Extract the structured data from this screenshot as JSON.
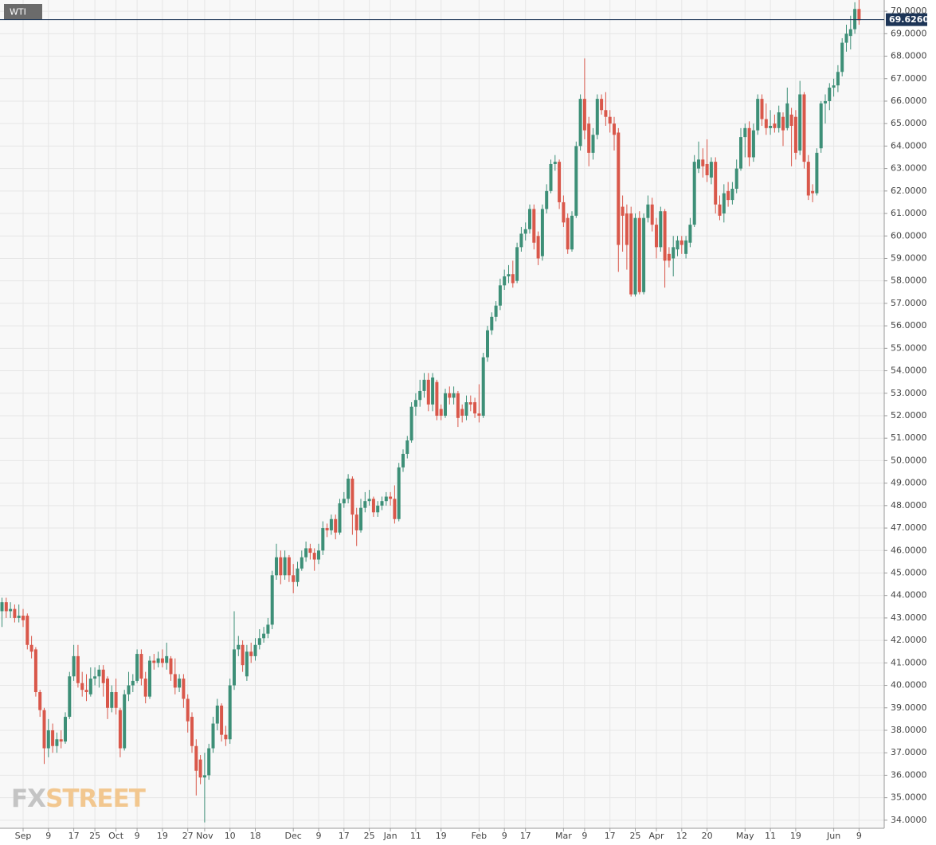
{
  "chart_data": {
    "type": "candlestick",
    "title": "WTI",
    "logo": {
      "fx": "FX",
      "street": "STREET"
    },
    "up_color": "#3d8f77",
    "down_color": "#d9574a",
    "grid": true,
    "ylim": [
      33.64,
      70.5
    ],
    "yticks": [
      {
        "value": 34,
        "label": "34.0000"
      },
      {
        "value": 35,
        "label": "35.0000"
      },
      {
        "value": 36,
        "label": "36.0000"
      },
      {
        "value": 37,
        "label": "37.0000"
      },
      {
        "value": 38,
        "label": "38.0000"
      },
      {
        "value": 39,
        "label": "39.0000"
      },
      {
        "value": 40,
        "label": "40.0000"
      },
      {
        "value": 41,
        "label": "41.0000"
      },
      {
        "value": 42,
        "label": "42.0000"
      },
      {
        "value": 43,
        "label": "43.0000"
      },
      {
        "value": 44,
        "label": "44.0000"
      },
      {
        "value": 45,
        "label": "45.0000"
      },
      {
        "value": 46,
        "label": "46.0000"
      },
      {
        "value": 47,
        "label": "47.0000"
      },
      {
        "value": 48,
        "label": "48.0000"
      },
      {
        "value": 49,
        "label": "49.0000"
      },
      {
        "value": 50,
        "label": "50.0000"
      },
      {
        "value": 51,
        "label": "51.0000"
      },
      {
        "value": 52,
        "label": "52.0000"
      },
      {
        "value": 53,
        "label": "53.0000"
      },
      {
        "value": 54,
        "label": "54.0000"
      },
      {
        "value": 55,
        "label": "55.0000"
      },
      {
        "value": 56,
        "label": "56.0000"
      },
      {
        "value": 57,
        "label": "57.0000"
      },
      {
        "value": 58,
        "label": "58.0000"
      },
      {
        "value": 59,
        "label": "59.0000"
      },
      {
        "value": 60,
        "label": "60.0000"
      },
      {
        "value": 61,
        "label": "61.0000"
      },
      {
        "value": 62,
        "label": "62.0000"
      },
      {
        "value": 63,
        "label": "63.0000"
      },
      {
        "value": 64,
        "label": "64.0000"
      },
      {
        "value": 65,
        "label": "65.0000"
      },
      {
        "value": 66,
        "label": "66.0000"
      },
      {
        "value": 67,
        "label": "67.0000"
      },
      {
        "value": 68,
        "label": "68.0000"
      },
      {
        "value": 69,
        "label": "69.0000"
      },
      {
        "value": 70,
        "label": "70.0000"
      }
    ],
    "last_price": {
      "value": 69.626,
      "label": "69.6260"
    },
    "categories": [
      null,
      null,
      null,
      null,
      null,
      "Sep",
      null,
      null,
      null,
      null,
      null,
      "9",
      null,
      null,
      null,
      null,
      null,
      "17",
      null,
      null,
      null,
      null,
      "25",
      null,
      null,
      null,
      null,
      "Oct",
      null,
      null,
      null,
      null,
      "9",
      null,
      null,
      null,
      null,
      null,
      "19",
      null,
      null,
      null,
      null,
      null,
      "27",
      null,
      null,
      null,
      "Nov",
      null,
      null,
      null,
      null,
      null,
      "10",
      null,
      null,
      null,
      null,
      null,
      "18",
      null,
      null,
      null,
      null,
      null,
      null,
      null,
      null,
      "Dec",
      null,
      null,
      null,
      null,
      null,
      "9",
      null,
      null,
      null,
      null,
      null,
      "17",
      null,
      null,
      null,
      null,
      null,
      "25",
      null,
      null,
      null,
      null,
      "Jan",
      null,
      null,
      null,
      null,
      null,
      "11",
      null,
      null,
      null,
      null,
      null,
      "19",
      null,
      null,
      null,
      null,
      null,
      null,
      null,
      null,
      "Feb",
      null,
      null,
      null,
      null,
      null,
      "9",
      null,
      null,
      null,
      null,
      "17",
      null,
      null,
      null,
      null,
      null,
      null,
      null,
      null,
      "Mar",
      null,
      null,
      null,
      null,
      "9",
      null,
      null,
      null,
      null,
      null,
      "17",
      null,
      null,
      null,
      null,
      null,
      "25",
      null,
      null,
      null,
      null,
      "Apr",
      null,
      null,
      null,
      null,
      null,
      "12",
      null,
      null,
      null,
      null,
      null,
      "20",
      null,
      null,
      null,
      null,
      null,
      null,
      null,
      null,
      "May",
      null,
      null,
      null,
      null,
      null,
      "11",
      null,
      null,
      null,
      null,
      null,
      "19",
      null,
      null,
      null,
      null,
      null,
      null,
      null,
      null,
      "Jun",
      null,
      null,
      null,
      null,
      null,
      "9"
    ],
    "open": [
      43.3,
      43.7,
      43.3,
      43.4,
      43.0,
      43.1,
      43.1,
      41.8,
      41.6,
      39.7,
      38.9,
      37.2,
      38.0,
      37.3,
      37.6,
      37.5,
      38.6,
      40.4,
      41.3,
      40.1,
      39.8,
      39.6,
      40.3,
      40.4,
      40.7,
      40.3,
      39.0,
      39.7,
      38.9,
      37.2,
      39.6,
      40.0,
      40.2,
      41.4,
      40.3,
      39.5,
      41.1,
      41.0,
      41.2,
      41.0,
      41.2,
      40.5,
      39.9,
      40.3,
      39.4,
      38.6,
      37.3,
      36.7,
      35.9,
      36.0,
      37.2,
      38.3,
      39.1,
      37.8,
      37.6,
      40.0,
      41.6,
      41.8,
      40.4,
      41.5,
      41.3,
      41.8,
      42.1,
      42.3,
      42.7,
      44.9,
      45.7,
      44.9,
      45.7,
      44.9,
      44.6,
      45.2,
      45.7,
      46.1,
      45.9,
      45.6,
      46.0,
      47.0,
      46.9,
      47.4,
      46.8,
      48.1,
      48.3,
      49.2,
      47.6,
      46.9,
      47.9,
      48.2,
      48.3,
      47.7,
      48.0,
      48.2,
      48.4,
      48.3,
      47.4,
      49.7,
      50.3,
      50.9,
      52.4,
      52.7,
      53.1,
      53.6,
      52.5,
      53.5,
      52.3,
      52.0,
      53.0,
      52.8,
      53.0,
      52.3,
      52.0,
      52.6,
      52.6,
      52.1,
      52.0,
      54.6,
      55.8,
      56.4,
      56.9,
      57.8,
      58.2,
      58.3,
      58.0,
      59.5,
      60.1,
      60.3,
      61.2,
      60.0,
      59.1,
      61.2,
      62.0,
      63.2,
      63.3,
      61.5,
      60.8,
      59.4,
      60.9,
      64.0,
      66.1,
      65.0,
      63.7,
      64.5,
      66.1,
      65.6,
      65.3,
      65.0,
      64.6,
      61.3,
      61.0,
      61.0,
      57.4,
      60.8,
      57.5,
      60.8,
      61.4,
      60.5,
      59.5,
      61.1,
      59.2,
      59.0,
      59.4,
      59.8,
      59.2,
      59.7,
      60.5,
      63.0,
      63.4,
      63.2,
      62.6,
      63.3,
      61.4,
      61.0,
      62.0,
      61.6,
      62.1,
      63.0,
      64.4,
      64.8,
      63.5,
      64.7,
      66.1,
      65.2,
      64.8,
      65.0,
      64.8,
      65.3,
      64.8,
      65.4,
      65.3,
      63.8,
      66.3,
      63.3,
      62.0,
      61.9,
      63.9,
      65.9,
      66.0,
      66.6,
      66.7,
      67.3,
      68.6,
      68.9,
      69.2,
      70.1
    ],
    "high": [
      43.9,
      43.9,
      43.7,
      43.6,
      43.6,
      43.4,
      43.2,
      42.2,
      41.7,
      39.8,
      39.0,
      38.5,
      38.3,
      37.9,
      38.0,
      38.8,
      40.6,
      41.8,
      41.8,
      40.6,
      40.5,
      40.8,
      40.8,
      40.9,
      40.9,
      40.4,
      40.0,
      40.3,
      39.0,
      39.8,
      40.6,
      40.5,
      41.6,
      41.6,
      40.6,
      41.3,
      41.4,
      41.5,
      41.6,
      41.9,
      41.3,
      41.2,
      40.5,
      40.5,
      39.6,
      38.8,
      37.6,
      36.9,
      37.0,
      37.4,
      38.6,
      39.4,
      39.2,
      38.2,
      40.3,
      43.3,
      42.2,
      42.0,
      41.8,
      41.9,
      42.1,
      42.5,
      42.6,
      43.0,
      45.1,
      46.3,
      46.0,
      46.0,
      45.8,
      45.4,
      45.5,
      46.0,
      46.4,
      46.3,
      46.1,
      46.3,
      47.3,
      47.2,
      47.6,
      47.6,
      48.3,
      48.6,
      49.4,
      49.3,
      47.9,
      48.3,
      48.6,
      48.7,
      48.4,
      48.2,
      48.4,
      48.6,
      48.6,
      48.9,
      49.9,
      50.5,
      51.1,
      52.6,
      53.0,
      53.6,
      53.9,
      53.9,
      53.9,
      53.6,
      52.5,
      53.2,
      53.3,
      53.3,
      53.1,
      52.5,
      52.9,
      52.9,
      52.8,
      53.4,
      54.8,
      56.0,
      56.6,
      57.1,
      58.1,
      58.5,
      58.7,
      58.9,
      59.7,
      60.4,
      60.6,
      61.4,
      61.4,
      60.2,
      61.4,
      62.3,
      63.4,
      63.6,
      63.4,
      61.8,
      61.0,
      61.1,
      64.2,
      66.3,
      67.9,
      65.3,
      64.8,
      66.3,
      66.3,
      66.4,
      65.6,
      65.3,
      64.8,
      61.8,
      61.4,
      61.3,
      61.0,
      61.1,
      61.0,
      61.8,
      61.7,
      60.8,
      61.3,
      61.2,
      59.5,
      60.0,
      60.0,
      60.0,
      60.0,
      60.8,
      63.6,
      64.2,
      63.9,
      64.3,
      63.5,
      63.5,
      61.8,
      62.3,
      62.4,
      62.4,
      63.4,
      64.8,
      65.0,
      65.1,
      65.0,
      66.3,
      66.3,
      65.9,
      65.6,
      65.4,
      65.8,
      65.5,
      66.6,
      65.7,
      65.6,
      66.9,
      66.4,
      63.6,
      62.3,
      63.9,
      66.0,
      66.3,
      66.8,
      67.0,
      67.6,
      68.8,
      69.4,
      69.8,
      70.4,
      70.5
    ],
    "low": [
      42.6,
      43.0,
      43.0,
      42.8,
      42.8,
      42.6,
      41.6,
      41.2,
      39.5,
      38.6,
      36.5,
      36.8,
      37.0,
      37.0,
      37.2,
      37.4,
      38.5,
      40.2,
      39.9,
      39.5,
      39.3,
      39.5,
      40.0,
      39.9,
      39.5,
      38.5,
      38.8,
      38.7,
      36.8,
      37.1,
      39.3,
      39.7,
      40.1,
      40.0,
      39.2,
      39.4,
      40.7,
      40.8,
      40.8,
      40.7,
      40.2,
      39.6,
      39.7,
      39.0,
      37.9,
      37.0,
      35.1,
      35.6,
      33.9,
      35.8,
      37.0,
      38.0,
      37.5,
      37.3,
      37.4,
      39.8,
      41.3,
      40.6,
      40.2,
      41.0,
      41.1,
      41.6,
      41.9,
      42.1,
      42.5,
      44.7,
      44.5,
      44.7,
      44.6,
      44.1,
      44.4,
      45.1,
      45.5,
      45.6,
      45.1,
      45.4,
      45.8,
      46.6,
      46.7,
      46.5,
      46.7,
      47.9,
      48.1,
      46.7,
      46.2,
      46.8,
      47.7,
      48.0,
      47.5,
      47.5,
      47.8,
      48.0,
      48.0,
      47.2,
      47.3,
      49.5,
      50.1,
      50.8,
      52.0,
      52.4,
      52.8,
      52.2,
      52.2,
      51.8,
      51.8,
      51.9,
      52.5,
      52.5,
      51.5,
      51.7,
      51.8,
      52.2,
      51.9,
      51.7,
      51.9,
      54.4,
      55.6,
      56.2,
      56.7,
      57.6,
      57.9,
      57.7,
      57.9,
      59.3,
      59.8,
      60.1,
      59.4,
      58.7,
      58.9,
      61.0,
      61.9,
      62.9,
      61.2,
      60.4,
      59.2,
      59.3,
      60.8,
      63.8,
      64.3,
      63.1,
      63.4,
      64.3,
      65.4,
      64.9,
      64.6,
      63.8,
      58.4,
      59.3,
      58.5,
      57.3,
      57.3,
      57.4,
      57.4,
      60.6,
      60.2,
      59.0,
      59.3,
      57.7,
      58.6,
      58.2,
      59.1,
      59.2,
      59.0,
      59.5,
      60.4,
      62.8,
      62.6,
      62.4,
      62.3,
      61.0,
      60.7,
      60.6,
      61.3,
      61.4,
      61.9,
      62.9,
      63.5,
      63.1,
      63.3,
      64.5,
      64.9,
      64.5,
      64.5,
      64.6,
      64.6,
      64.0,
      64.7,
      63.1,
      63.4,
      63.6,
      63.0,
      61.6,
      61.5,
      61.8,
      63.7,
      65.0,
      65.6,
      66.2,
      66.4,
      67.1,
      68.2,
      68.3,
      69.0,
      69.4
    ],
    "close": [
      43.7,
      43.3,
      43.4,
      43.0,
      43.1,
      42.9,
      41.8,
      41.5,
      39.7,
      38.9,
      37.2,
      38.0,
      37.3,
      37.6,
      37.5,
      38.6,
      40.4,
      41.3,
      40.1,
      39.8,
      39.7,
      40.3,
      40.4,
      40.7,
      40.1,
      39.0,
      39.7,
      39.0,
      37.2,
      39.6,
      40.0,
      40.2,
      41.4,
      40.3,
      39.5,
      41.1,
      41.0,
      41.2,
      41.0,
      41.3,
      40.5,
      39.9,
      40.3,
      39.4,
      38.4,
      37.3,
      36.2,
      35.9,
      36.0,
      37.2,
      38.3,
      39.1,
      37.8,
      37.6,
      40.0,
      41.6,
      41.8,
      40.9,
      41.5,
      41.3,
      41.8,
      42.1,
      42.3,
      42.7,
      44.9,
      45.7,
      44.9,
      45.7,
      44.9,
      44.6,
      45.2,
      45.7,
      46.1,
      45.9,
      45.6,
      46.0,
      47.0,
      46.9,
      47.4,
      46.8,
      48.1,
      48.3,
      49.2,
      47.6,
      46.9,
      47.9,
      48.2,
      48.3,
      47.7,
      48.0,
      48.2,
      48.4,
      48.3,
      47.4,
      49.7,
      50.3,
      50.9,
      52.4,
      52.7,
      53.1,
      53.6,
      52.5,
      53.7,
      52.0,
      52.0,
      53.0,
      52.8,
      53.0,
      51.9,
      52.0,
      52.6,
      52.5,
      52.1,
      52.0,
      54.6,
      55.8,
      56.4,
      56.9,
      57.8,
      58.2,
      58.3,
      57.9,
      59.5,
      60.1,
      60.3,
      61.2,
      59.7,
      59.0,
      61.2,
      62.0,
      63.2,
      63.3,
      61.5,
      60.6,
      59.4,
      60.9,
      64.0,
      66.1,
      64.7,
      63.7,
      64.5,
      66.1,
      65.6,
      65.3,
      65.0,
      64.5,
      59.6,
      60.9,
      59.6,
      57.4,
      60.8,
      57.5,
      60.8,
      61.4,
      60.5,
      59.5,
      61.1,
      58.9,
      58.9,
      59.5,
      59.8,
      59.6,
      59.8,
      60.5,
      63.3,
      63.4,
      63.1,
      62.7,
      63.3,
      61.4,
      60.9,
      61.9,
      61.6,
      62.1,
      63.0,
      64.4,
      64.8,
      63.5,
      64.7,
      66.1,
      65.2,
      64.8,
      64.9,
      64.8,
      65.5,
      64.7,
      65.9,
      64.9,
      63.7,
      66.3,
      63.3,
      61.8,
      61.9,
      63.7,
      65.9,
      66.0,
      66.6,
      66.7,
      67.3,
      68.6,
      69.0,
      69.2,
      70.1,
      69.6
    ]
  }
}
